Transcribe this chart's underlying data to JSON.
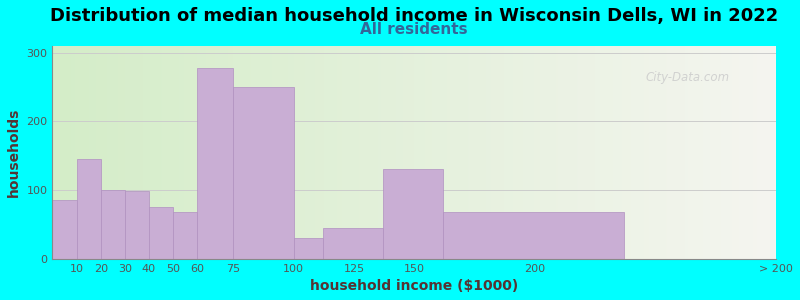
{
  "title": "Distribution of median household income in Wisconsin Dells, WI in 2022",
  "subtitle": "All residents",
  "xlabel": "household income ($1000)",
  "ylabel": "households",
  "bar_color": "#c9aed4",
  "bar_edgecolor": "#b090c0",
  "background_color": "#00ffff",
  "plot_bg_gradient_left": "#d4edc8",
  "plot_bg_gradient_right": "#f5f5f0",
  "bins_left": [
    0,
    10,
    20,
    30,
    40,
    50,
    60,
    75,
    100,
    112,
    137,
    162,
    237
  ],
  "bins_right": [
    10,
    20,
    30,
    40,
    50,
    60,
    75,
    100,
    112,
    137,
    162,
    237,
    300
  ],
  "values": [
    85,
    145,
    100,
    98,
    75,
    68,
    278,
    250,
    30,
    45,
    130,
    68,
    0
  ],
  "xtick_positions": [
    10,
    20,
    30,
    40,
    50,
    60,
    75,
    100,
    125,
    150,
    200,
    300
  ],
  "xtick_labels": [
    "10",
    "20",
    "30",
    "40",
    "50",
    "60",
    "75",
    "100",
    "125",
    "150",
    "200",
    "> 200"
  ],
  "ylim": [
    0,
    310
  ],
  "yticks": [
    0,
    100,
    200,
    300
  ],
  "title_fontsize": 13,
  "subtitle_fontsize": 11,
  "label_fontsize": 10,
  "tick_fontsize": 8,
  "watermark_text": "City-Data.com"
}
